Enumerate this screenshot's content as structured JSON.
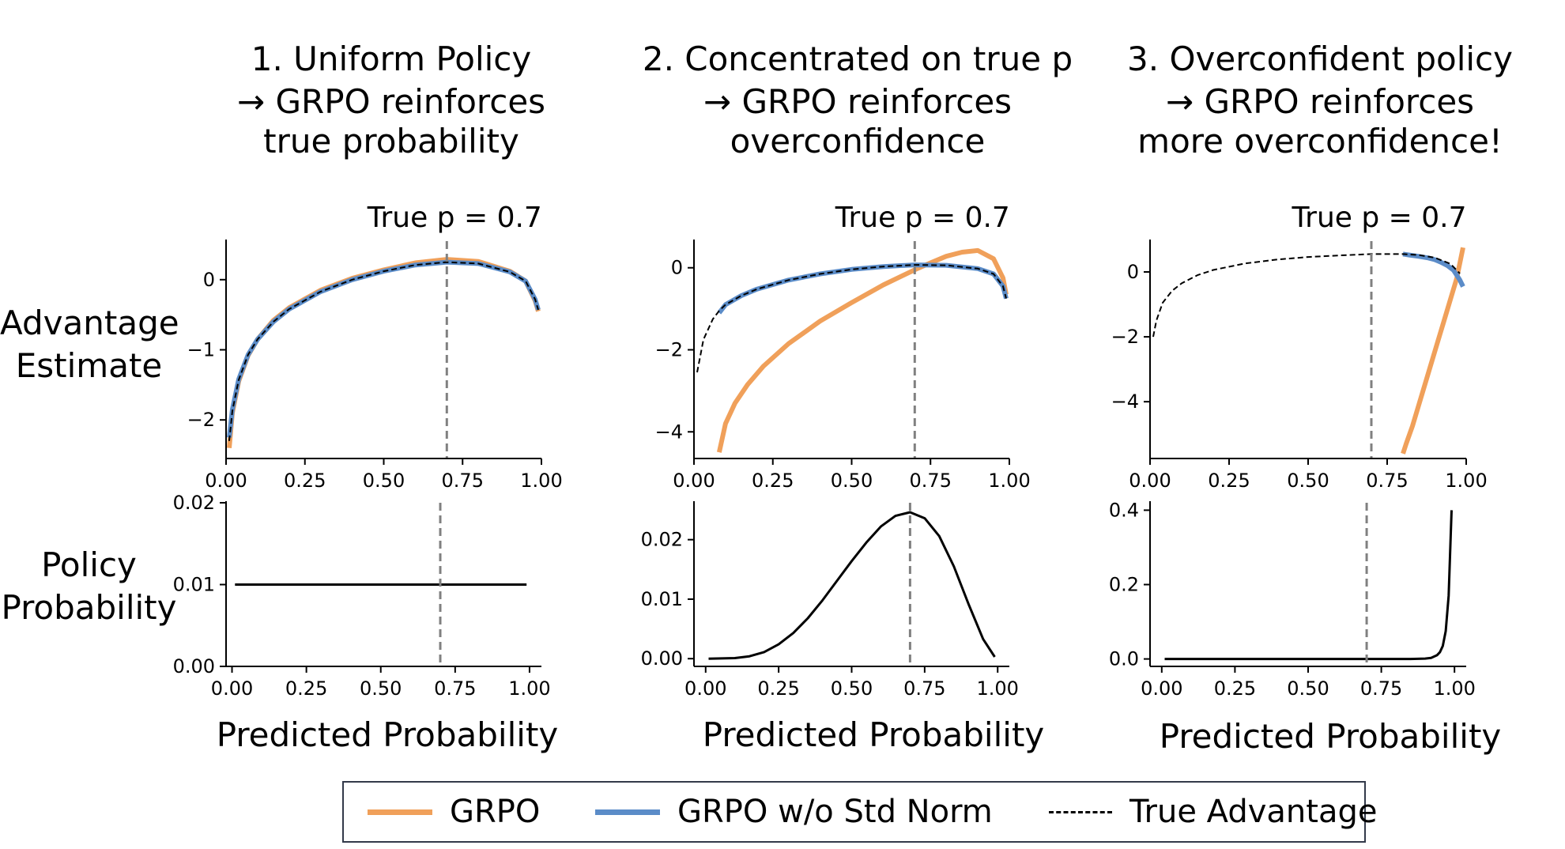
{
  "columns": [
    {
      "title_line1": "1. Uniform Policy",
      "title_line2": "→ GRPO reinforces",
      "title_line3": "true probability"
    },
    {
      "title_line1": "2. Concentrated on true p",
      "title_line2": "→ GRPO reinforces",
      "title_line3": "overconfidence"
    },
    {
      "title_line1": "3. Overconfident policy",
      "title_line2": "→ GRPO reinforces",
      "title_line3": "more overconfidence!"
    }
  ],
  "row_labels": {
    "top_line1": "Advantage",
    "top_line2": "Estimate",
    "bottom_line1": "Policy",
    "bottom_line2": "Probability"
  },
  "xlabel": "Predicted Probability",
  "annotation": "True p = 0.7",
  "legend": {
    "grpo": "GRPO",
    "grpo_no_std": "GRPO w/o Std Norm",
    "true_adv": "True Advantage"
  },
  "colors": {
    "grpo": "#f0a05a",
    "grpo_no_std": "#5b8cc8",
    "true_adv": "#000000",
    "vline": "#808080"
  },
  "chart_data": [
    {
      "type": "line",
      "panel": "advantage-uniform",
      "xlim": [
        0,
        1
      ],
      "ylim": [
        -2.55,
        0.55
      ],
      "xticks": [
        0.0,
        0.25,
        0.5,
        0.75,
        1.0
      ],
      "xtick_labels": [
        "0.00",
        "0.25",
        "0.50",
        "0.75",
        "1.00"
      ],
      "yticks": [
        -2,
        -1,
        0
      ],
      "ytick_labels": [
        "−2",
        "−1",
        "0"
      ],
      "vline": 0.7,
      "annotation": "True p = 0.7",
      "series": [
        {
          "name": "GRPO",
          "x": [
            0.01,
            0.02,
            0.04,
            0.07,
            0.1,
            0.15,
            0.2,
            0.3,
            0.4,
            0.5,
            0.6,
            0.7,
            0.8,
            0.9,
            0.95,
            0.98,
            0.99
          ],
          "y": [
            -2.4,
            -1.9,
            -1.45,
            -1.08,
            -0.85,
            -0.58,
            -0.4,
            -0.15,
            0.02,
            0.14,
            0.24,
            0.29,
            0.26,
            0.12,
            -0.02,
            -0.3,
            -0.45
          ]
        },
        {
          "name": "GRPO w/o Std Norm",
          "x": [
            0.01,
            0.02,
            0.04,
            0.07,
            0.1,
            0.15,
            0.2,
            0.3,
            0.4,
            0.5,
            0.6,
            0.7,
            0.8,
            0.9,
            0.95,
            0.98,
            0.99
          ],
          "y": [
            -2.25,
            -1.85,
            -1.42,
            -1.07,
            -0.85,
            -0.6,
            -0.42,
            -0.17,
            0.0,
            0.12,
            0.21,
            0.25,
            0.23,
            0.11,
            -0.02,
            -0.28,
            -0.43
          ]
        },
        {
          "name": "True Advantage",
          "x": [
            0.01,
            0.02,
            0.04,
            0.07,
            0.1,
            0.15,
            0.2,
            0.3,
            0.4,
            0.5,
            0.6,
            0.7,
            0.8,
            0.9,
            0.95,
            0.98,
            0.99
          ],
          "y": [
            -2.3,
            -1.87,
            -1.43,
            -1.07,
            -0.85,
            -0.6,
            -0.42,
            -0.17,
            0.0,
            0.12,
            0.21,
            0.25,
            0.23,
            0.11,
            -0.02,
            -0.28,
            -0.43
          ]
        }
      ]
    },
    {
      "type": "line",
      "panel": "advantage-concentrated",
      "xlim": [
        0,
        1
      ],
      "ylim": [
        -4.65,
        0.65
      ],
      "xticks": [
        0.0,
        0.25,
        0.5,
        0.75,
        1.0
      ],
      "xtick_labels": [
        "0.00",
        "0.25",
        "0.50",
        "0.75",
        "1.00"
      ],
      "yticks": [
        -4,
        -2,
        0
      ],
      "ytick_labels": [
        "−4",
        "−2",
        "0"
      ],
      "vline": 0.7,
      "annotation": "True p = 0.7",
      "series": [
        {
          "name": "GRPO",
          "x": [
            0.08,
            0.1,
            0.13,
            0.17,
            0.22,
            0.3,
            0.4,
            0.5,
            0.6,
            0.7,
            0.75,
            0.8,
            0.85,
            0.9,
            0.95,
            0.98,
            0.99
          ],
          "y": [
            -4.5,
            -3.8,
            -3.3,
            -2.85,
            -2.4,
            -1.85,
            -1.3,
            -0.85,
            -0.42,
            -0.05,
            0.12,
            0.28,
            0.38,
            0.42,
            0.22,
            -0.25,
            -0.65
          ]
        },
        {
          "name": "GRPO w/o Std Norm",
          "x": [
            0.08,
            0.1,
            0.15,
            0.2,
            0.3,
            0.4,
            0.5,
            0.6,
            0.7,
            0.8,
            0.9,
            0.95,
            0.98,
            0.99
          ],
          "y": [
            -1.1,
            -0.9,
            -0.68,
            -0.52,
            -0.3,
            -0.15,
            -0.04,
            0.03,
            0.07,
            0.06,
            -0.02,
            -0.15,
            -0.45,
            -0.75
          ]
        },
        {
          "name": "True Advantage",
          "x": [
            0.01,
            0.03,
            0.06,
            0.08,
            0.1,
            0.15,
            0.2,
            0.3,
            0.4,
            0.5,
            0.6,
            0.7,
            0.8,
            0.9,
            0.95,
            0.98,
            0.99
          ],
          "y": [
            -2.55,
            -1.75,
            -1.25,
            -1.05,
            -0.9,
            -0.68,
            -0.52,
            -0.3,
            -0.15,
            -0.04,
            0.03,
            0.07,
            0.06,
            -0.02,
            -0.15,
            -0.45,
            -0.75
          ]
        }
      ]
    },
    {
      "type": "line",
      "panel": "advantage-overconfident",
      "xlim": [
        0,
        1
      ],
      "ylim": [
        -5.75,
        0.95
      ],
      "xticks": [
        0.0,
        0.25,
        0.5,
        0.75,
        1.0
      ],
      "xtick_labels": [
        "0.00",
        "0.25",
        "0.50",
        "0.75",
        "1.00"
      ],
      "yticks": [
        -4,
        -2,
        0
      ],
      "ytick_labels": [
        "−4",
        "−2",
        "0"
      ],
      "vline": 0.7,
      "annotation": "True p = 0.7",
      "series": [
        {
          "name": "GRPO",
          "x": [
            0.8,
            0.81,
            0.83,
            0.85,
            0.87,
            0.89,
            0.91,
            0.93,
            0.95,
            0.97,
            0.99
          ],
          "y": [
            -5.6,
            -5.3,
            -4.75,
            -4.1,
            -3.45,
            -2.8,
            -2.15,
            -1.5,
            -0.85,
            -0.2,
            0.75
          ]
        },
        {
          "name": "GRPO w/o Std Norm",
          "x": [
            0.8,
            0.82,
            0.85,
            0.88,
            0.9,
            0.92,
            0.94,
            0.96,
            0.98,
            0.99
          ],
          "y": [
            0.55,
            0.52,
            0.48,
            0.43,
            0.38,
            0.3,
            0.2,
            0.05,
            -0.25,
            -0.45
          ]
        },
        {
          "name": "True Advantage",
          "x": [
            0.01,
            0.02,
            0.04,
            0.07,
            0.1,
            0.15,
            0.2,
            0.3,
            0.4,
            0.5,
            0.6,
            0.7,
            0.8,
            0.85,
            0.9,
            0.95,
            0.98
          ],
          "y": [
            -2.0,
            -1.5,
            -0.95,
            -0.58,
            -0.35,
            -0.1,
            0.06,
            0.26,
            0.38,
            0.46,
            0.51,
            0.55,
            0.55,
            0.52,
            0.44,
            0.25,
            -0.05
          ]
        }
      ]
    },
    {
      "type": "line",
      "panel": "policy-uniform",
      "xlim": [
        -0.02,
        1.04
      ],
      "ylim": [
        0,
        0.02
      ],
      "xticks": [
        0.0,
        0.25,
        0.5,
        0.75,
        1.0
      ],
      "xtick_labels": [
        "0.00",
        "0.25",
        "0.50",
        "0.75",
        "1.00"
      ],
      "yticks": [
        0,
        0.01,
        0.02
      ],
      "ytick_labels": [
        "0.00",
        "0.01",
        "0.02"
      ],
      "vline": 0.7,
      "series": [
        {
          "name": "Policy",
          "x": [
            0.01,
            0.99
          ],
          "y": [
            0.01,
            0.01
          ]
        }
      ]
    },
    {
      "type": "line",
      "panel": "policy-concentrated",
      "xlim": [
        -0.04,
        1.04
      ],
      "ylim": [
        -0.0013,
        0.0262
      ],
      "xticks": [
        0.0,
        0.25,
        0.5,
        0.75,
        1.0
      ],
      "xtick_labels": [
        "0.00",
        "0.25",
        "0.50",
        "0.75",
        "1.00"
      ],
      "yticks": [
        0,
        0.01,
        0.02
      ],
      "ytick_labels": [
        "0.00",
        "0.01",
        "0.02"
      ],
      "vline": 0.7,
      "series": [
        {
          "name": "Policy",
          "x": [
            0.01,
            0.1,
            0.15,
            0.2,
            0.25,
            0.3,
            0.35,
            0.4,
            0.45,
            0.5,
            0.55,
            0.6,
            0.65,
            0.7,
            0.75,
            0.8,
            0.85,
            0.9,
            0.95,
            0.99
          ],
          "y": [
            0.0,
            0.0001,
            0.0004,
            0.0011,
            0.0024,
            0.0043,
            0.0068,
            0.0098,
            0.0131,
            0.0164,
            0.0195,
            0.0222,
            0.024,
            0.0246,
            0.0236,
            0.0206,
            0.0155,
            0.0092,
            0.0033,
            0.0003
          ]
        }
      ]
    },
    {
      "type": "line",
      "panel": "policy-overconfident",
      "xlim": [
        -0.04,
        1.04
      ],
      "ylim": [
        -0.02,
        0.42
      ],
      "xticks": [
        0.0,
        0.25,
        0.5,
        0.75,
        1.0
      ],
      "xtick_labels": [
        "0.00",
        "0.25",
        "0.50",
        "0.75",
        "1.00"
      ],
      "yticks": [
        0,
        0.2,
        0.4
      ],
      "ytick_labels": [
        "0.0",
        "0.2",
        "0.4"
      ],
      "vline": 0.7,
      "series": [
        {
          "name": "Policy",
          "x": [
            0.01,
            0.85,
            0.9,
            0.92,
            0.94,
            0.95,
            0.96,
            0.97,
            0.98,
            0.99
          ],
          "y": [
            0.0,
            0.0,
            0.001,
            0.003,
            0.01,
            0.018,
            0.035,
            0.075,
            0.17,
            0.4
          ]
        }
      ]
    }
  ]
}
